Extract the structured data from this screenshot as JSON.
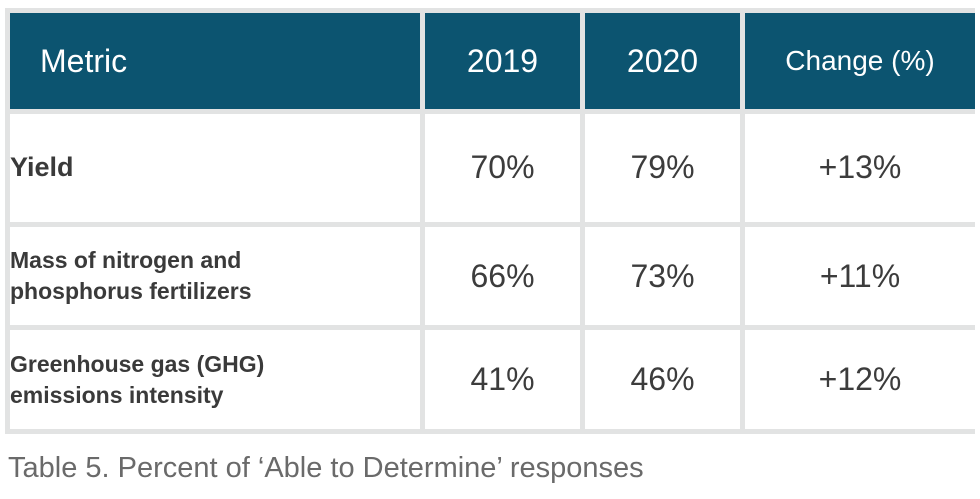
{
  "table": {
    "headers": {
      "metric": "Metric",
      "y2019": "2019",
      "y2020": "2020",
      "change": "Change (%)"
    },
    "rows": [
      {
        "metric_line1": "Yield",
        "metric_line2": "",
        "y2019": "70%",
        "y2020": "79%",
        "change": "+13%"
      },
      {
        "metric_line1": "Mass of nitrogen and",
        "metric_line2": "phosphorus fertilizers",
        "y2019": "66%",
        "y2020": "73%",
        "change": "+11%"
      },
      {
        "metric_line1": "Greenhouse gas (GHG)",
        "metric_line2": "emissions intensity",
        "y2019": "41%",
        "y2020": "46%",
        "change": "+12%"
      }
    ],
    "colors": {
      "header_bg": "#0c5470",
      "header_text": "#ffffff",
      "grid_lines": "#e2e3e3",
      "body_text": "#3c3c3c"
    }
  },
  "caption": "Table 5. Percent of ‘Able to Determine’ responses"
}
